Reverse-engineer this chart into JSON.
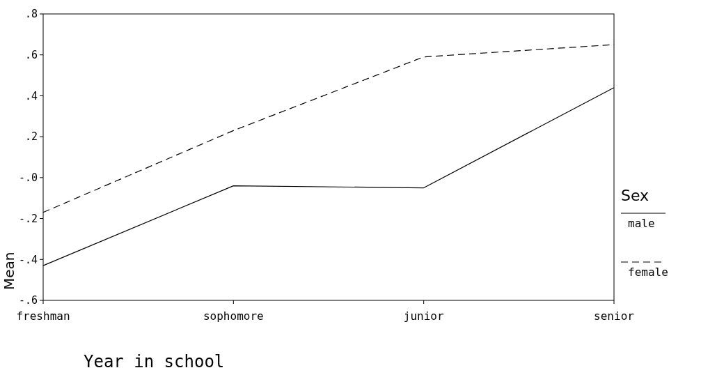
{
  "chart_data": {
    "type": "line",
    "xlabel": "Year in school",
    "ylabel": "Mean",
    "legend_title": "Sex",
    "legend": "right",
    "categories": [
      "freshman",
      "sophomore",
      "junior",
      "senior"
    ],
    "series": [
      {
        "name": "male",
        "color": "#000000",
        "line_style": "solid",
        "values": [
          -0.43,
          -0.04,
          -0.05,
          0.44
        ]
      },
      {
        "name": "female",
        "color": "#000000",
        "line_style": "dashed",
        "values": [
          -0.17,
          0.23,
          0.59,
          0.65
        ]
      }
    ],
    "ylim": [
      -0.6,
      0.8
    ],
    "yticks": [
      {
        "value": -0.6,
        "label": "-.6"
      },
      {
        "value": -0.4,
        "label": "-.4"
      },
      {
        "value": -0.2,
        "label": "-.2"
      },
      {
        "value": 0,
        "label": "-.0"
      },
      {
        "value": 0.2,
        "label": ".2"
      },
      {
        "value": 0.4,
        "label": ".4"
      },
      {
        "value": 0.6,
        "label": ".6"
      },
      {
        "value": 0.8,
        "label": ".8"
      }
    ]
  }
}
